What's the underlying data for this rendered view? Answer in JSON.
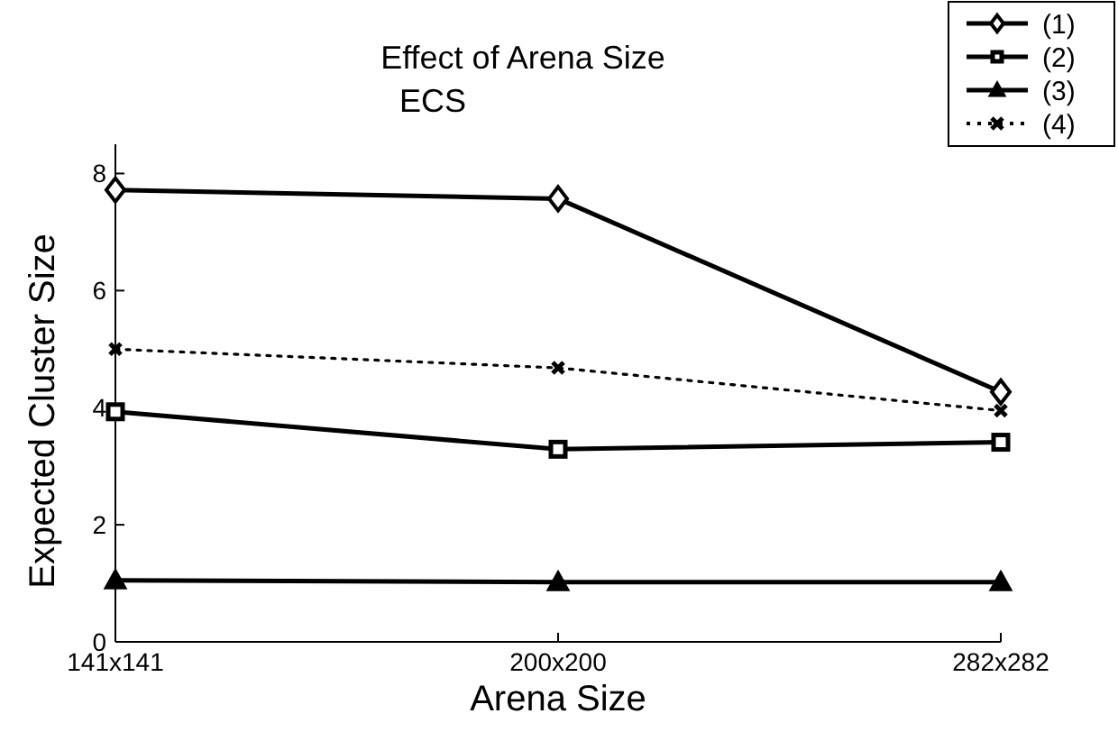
{
  "chart_data": {
    "type": "line",
    "title": "Effect of Arena Size",
    "subtitle": "ECS",
    "xlabel": "Arena Size",
    "ylabel": "Expected Cluster Size",
    "categories": [
      "141x141",
      "200x200",
      "282x282"
    ],
    "series": [
      {
        "name": "(1)",
        "color": "#000000",
        "marker": "diamond",
        "line_style": "solid",
        "values": [
          7.72,
          7.57,
          4.27
        ]
      },
      {
        "name": "(2)",
        "color": "#000000",
        "marker": "square",
        "line_style": "solid",
        "values": [
          3.93,
          3.29,
          3.41
        ]
      },
      {
        "name": "(3)",
        "color": "#000000",
        "marker": "triangle",
        "line_style": "solid",
        "values": [
          1.05,
          1.02,
          1.02
        ]
      },
      {
        "name": "(4)",
        "color": "#000000",
        "marker": "cross",
        "line_style": "dotted",
        "values": [
          5.0,
          4.68,
          3.95
        ]
      }
    ],
    "ylim": [
      0,
      8.5
    ],
    "yticks": [
      0,
      2,
      4,
      6,
      8
    ],
    "grid": false,
    "legend": "top right"
  }
}
